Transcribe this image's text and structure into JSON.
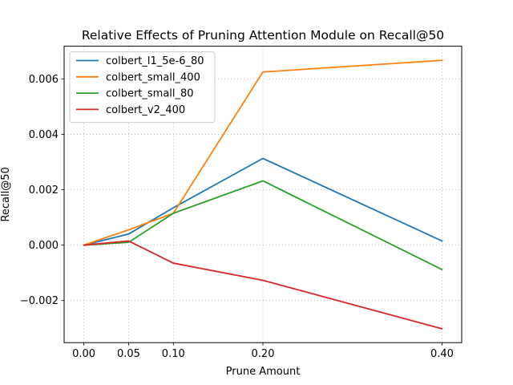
{
  "chart_data": {
    "type": "line",
    "title": "Relative Effects of Pruning Attention Module on Recall@50",
    "xlabel": "Prune Amount",
    "ylabel": "Recall@50",
    "x": [
      0.0,
      0.05,
      0.1,
      0.2,
      0.4
    ],
    "x_tick_labels": [
      "0.00",
      "0.05",
      "0.10",
      "0.20",
      "0.40"
    ],
    "y_ticks": [
      -0.002,
      0.0,
      0.002,
      0.004,
      0.006
    ],
    "y_tick_labels": [
      "−0.002",
      "0.000",
      "0.002",
      "0.004",
      "0.006"
    ],
    "xlim": [
      -0.022,
      0.422
    ],
    "ylim": [
      -0.00352,
      0.00718
    ],
    "grid": true,
    "legend_position": "upper-left",
    "series": [
      {
        "name": "colbert_l1_5e-6_80",
        "color": "#1f77b4",
        "values": [
          0.0,
          0.0004,
          0.00135,
          0.00313,
          0.00015
        ]
      },
      {
        "name": "colbert_small_400",
        "color": "#ff7f0e",
        "values": [
          0.0,
          0.00055,
          0.00115,
          0.00625,
          0.00667
        ]
      },
      {
        "name": "colbert_small_80",
        "color": "#2ca02c",
        "values": [
          0.0,
          0.0001,
          0.00115,
          0.00232,
          -0.00088
        ]
      },
      {
        "name": "colbert_v2_400",
        "color": "#d62728",
        "values": [
          0.0,
          0.00015,
          -0.00065,
          -0.00127,
          -0.00302
        ]
      }
    ]
  }
}
